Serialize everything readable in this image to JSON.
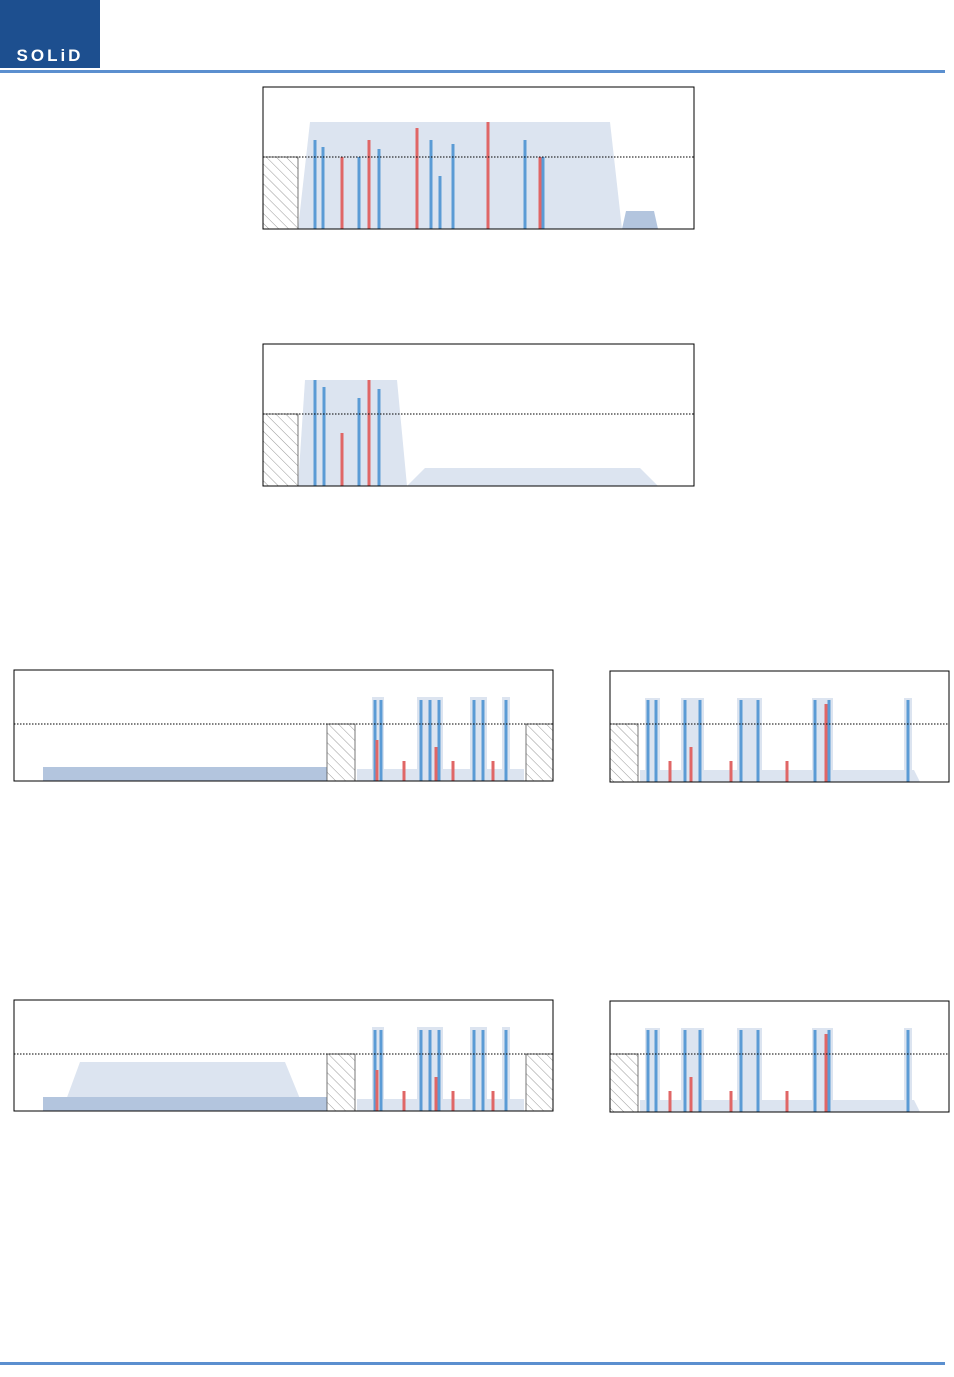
{
  "header": {
    "logo": "SOLiD"
  }
}
